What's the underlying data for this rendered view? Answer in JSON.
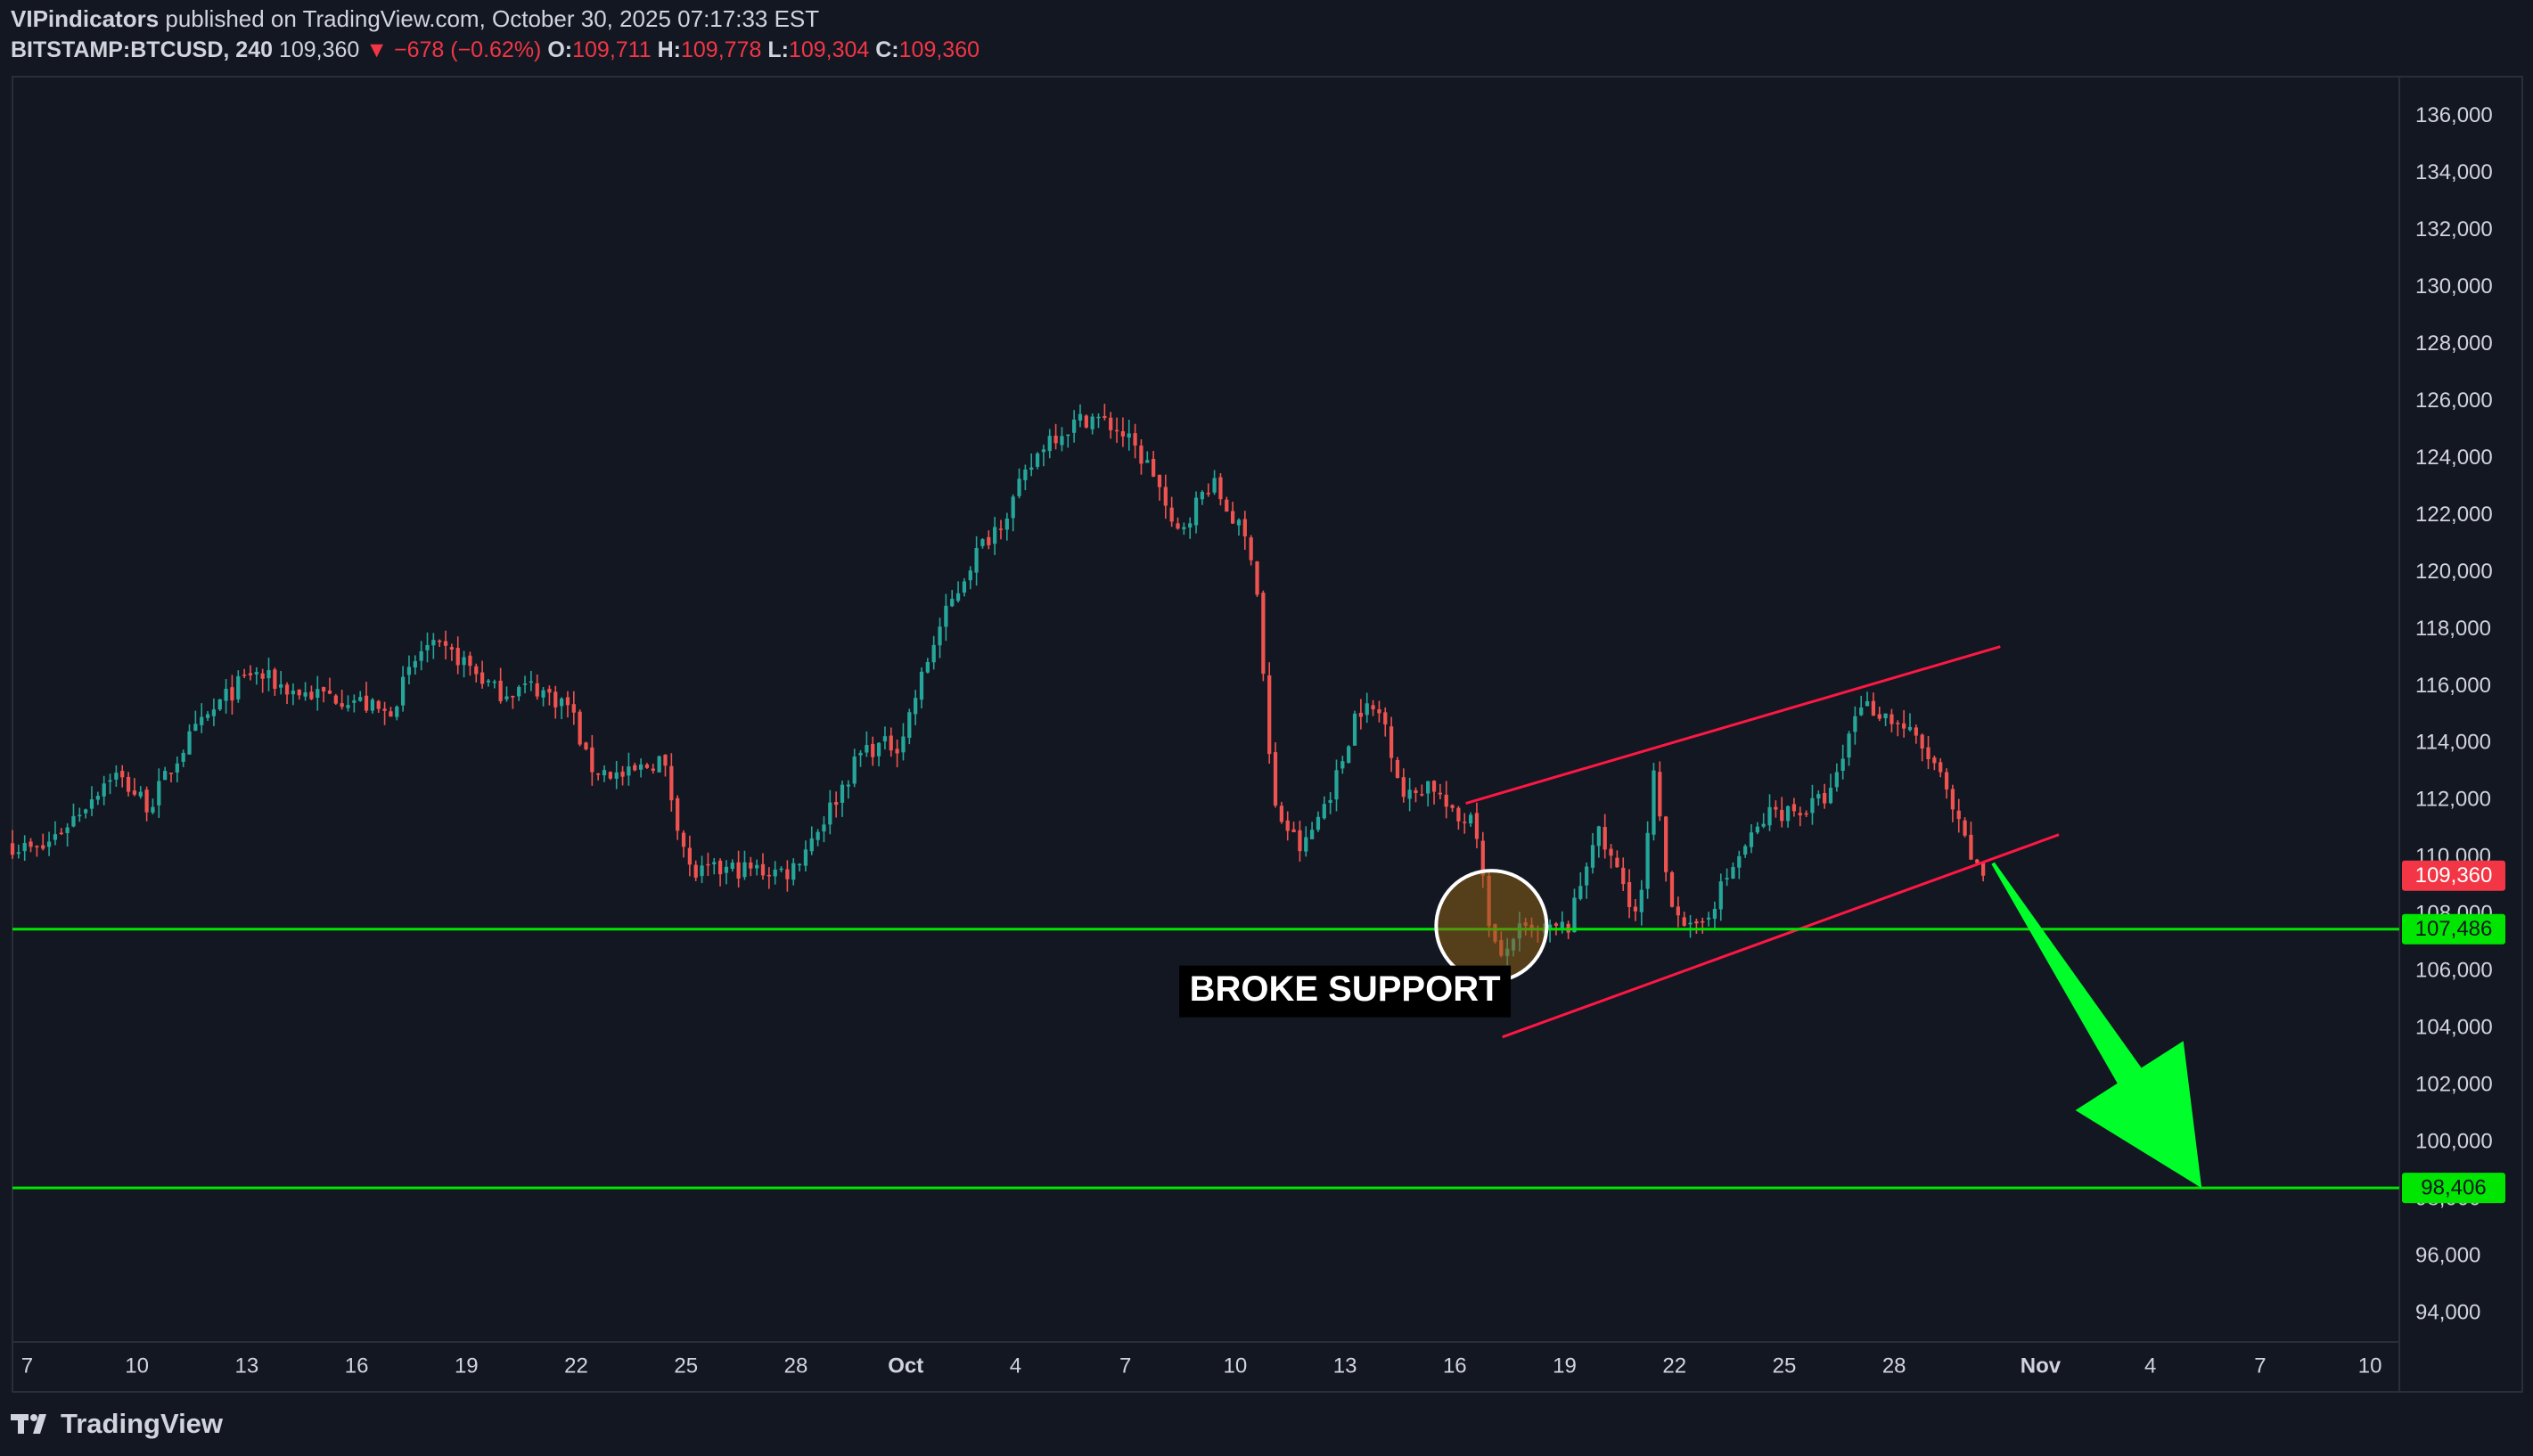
{
  "header": {
    "author": "VIPindicators",
    "published_text": " published on TradingView.com, October 30, 2025 07:17:33 EST",
    "symbol": "BITSTAMP:BTCUSD, 240",
    "last": "109,360",
    "change": "▼ −678 (−0.62%)",
    "o_label": "O:",
    "o_value": "109,711",
    "h_label": "H:",
    "h_value": "109,778",
    "l_label": "L:",
    "l_value": "109,304",
    "c_label": "C:",
    "c_value": "109,360"
  },
  "footer": {
    "brand": "TradingView"
  },
  "colors": {
    "background": "#131722",
    "up": "#26a69a",
    "down": "#ef5350",
    "support": "#00e600",
    "channel": "#ff1744",
    "arrow": "#00ff2a",
    "price_badge": "#f23645",
    "level_badge": "#00e600"
  },
  "chart_data": {
    "type": "candlestick",
    "title": "",
    "ylim": [
      93000,
      137400
    ],
    "y_ticks": [
      94000,
      96000,
      98000,
      100000,
      102000,
      104000,
      106000,
      108000,
      110000,
      112000,
      114000,
      116000,
      118000,
      120000,
      122000,
      124000,
      126000,
      128000,
      130000,
      132000,
      134000,
      136000
    ],
    "y_tick_labels": [
      "94,000",
      "96,000",
      "98,000",
      "100,000",
      "102,000",
      "104,000",
      "106,000",
      "108,000",
      "110,000",
      "112,000",
      "114,000",
      "116,000",
      "118,000",
      "120,000",
      "122,000",
      "124,000",
      "126,000",
      "128,000",
      "130,000",
      "132,000",
      "134,000",
      "136,000"
    ],
    "x_ticks": [
      {
        "day": 7,
        "label": "7"
      },
      {
        "day": 10,
        "label": "10"
      },
      {
        "day": 13,
        "label": "13"
      },
      {
        "day": 16,
        "label": "16"
      },
      {
        "day": 19,
        "label": "19"
      },
      {
        "day": 22,
        "label": "22"
      },
      {
        "day": 25,
        "label": "25"
      },
      {
        "day": 28,
        "label": "28"
      },
      {
        "day": 31,
        "label": "Oct"
      },
      {
        "day": 34,
        "label": "4"
      },
      {
        "day": 37,
        "label": "7"
      },
      {
        "day": 40,
        "label": "10"
      },
      {
        "day": 43,
        "label": "13"
      },
      {
        "day": 46,
        "label": "16"
      },
      {
        "day": 49,
        "label": "19"
      },
      {
        "day": 52,
        "label": "22"
      },
      {
        "day": 55,
        "label": "25"
      },
      {
        "day": 58,
        "label": "28"
      },
      {
        "day": 62,
        "label": "Nov"
      },
      {
        "day": 65,
        "label": "4"
      },
      {
        "day": 68,
        "label": "7"
      },
      {
        "day": 71,
        "label": "10"
      }
    ],
    "day_index_note": "day 0 = Aug 31, 2025; Oct 1 = day 31",
    "x_range": [
      6.6,
      71.8
    ],
    "price_path": [
      [
        6.6,
        110500
      ],
      [
        7.5,
        110200
      ],
      [
        8.5,
        111500
      ],
      [
        9.5,
        113000
      ],
      [
        10.5,
        111800
      ],
      [
        11.5,
        114000
      ],
      [
        12.5,
        115500
      ],
      [
        13.3,
        116500
      ],
      [
        14.5,
        115800
      ],
      [
        16,
        115600
      ],
      [
        17,
        115000
      ],
      [
        18,
        117400
      ],
      [
        19,
        117000
      ],
      [
        20,
        115800
      ],
      [
        21,
        116000
      ],
      [
        22,
        115300
      ],
      [
        22.5,
        113200
      ],
      [
        23.5,
        112800
      ],
      [
        24.5,
        113500
      ],
      [
        25.3,
        109400
      ],
      [
        26.5,
        109600
      ],
      [
        28,
        109500
      ],
      [
        29,
        111500
      ],
      [
        30,
        113800
      ],
      [
        31,
        114000
      ],
      [
        32,
        117800
      ],
      [
        33,
        120500
      ],
      [
        34,
        122300
      ],
      [
        35,
        124700
      ],
      [
        36.2,
        125500
      ],
      [
        37,
        125000
      ],
      [
        38,
        123400
      ],
      [
        38.5,
        121200
      ],
      [
        39.5,
        123200
      ],
      [
        40.2,
        121700
      ],
      [
        40.7,
        120500
      ],
      [
        41.2,
        111800
      ],
      [
        42,
        110200
      ],
      [
        43,
        113000
      ],
      [
        43.5,
        115300
      ],
      [
        44.2,
        115000
      ],
      [
        44.8,
        112000
      ],
      [
        45.5,
        112700
      ],
      [
        46.2,
        111200
      ],
      [
        46.7,
        111700
      ],
      [
        47,
        108400
      ],
      [
        47.4,
        106200
      ],
      [
        47.8,
        107400
      ],
      [
        48.5,
        107300
      ],
      [
        49.3,
        107600
      ],
      [
        50,
        111000
      ],
      [
        50.8,
        109000
      ],
      [
        51.2,
        107800
      ],
      [
        51.6,
        112800
      ],
      [
        52,
        108800
      ],
      [
        52.7,
        107200
      ],
      [
        53.3,
        108600
      ],
      [
        54,
        110200
      ],
      [
        54.8,
        111600
      ],
      [
        55.8,
        111700
      ],
      [
        56.5,
        112300
      ],
      [
        57.2,
        115500
      ],
      [
        57.8,
        115100
      ],
      [
        58.5,
        114500
      ],
      [
        59.3,
        113200
      ],
      [
        60,
        110800
      ],
      [
        60.5,
        109360
      ]
    ],
    "series": [
      {
        "name": "BITSTAMP:BTCUSD",
        "last": 109360
      }
    ],
    "lines": [
      {
        "name": "upper channel",
        "from": [
          46.3,
          111900
        ],
        "to": [
          60.9,
          117400
        ]
      },
      {
        "name": "lower channel",
        "from": [
          47.3,
          103700
        ],
        "to": [
          62.5,
          110800
        ]
      },
      {
        "name": "support 107,486",
        "value": 107486
      },
      {
        "name": "target 98,406",
        "value": 98406
      }
    ],
    "price_labels": [
      {
        "value": 109360,
        "label": "109,360"
      },
      {
        "value": 107486,
        "label": "107,486"
      },
      {
        "value": 98406,
        "label": "98,406"
      }
    ],
    "annotation": {
      "text": "BROKE SUPPORT",
      "day": 43.0,
      "price": 105300
    },
    "circle": {
      "day": 47.0,
      "price": 107600
    },
    "arrow": {
      "from": [
        60.7,
        109800
      ],
      "to": [
        66.4,
        98400
      ]
    }
  }
}
